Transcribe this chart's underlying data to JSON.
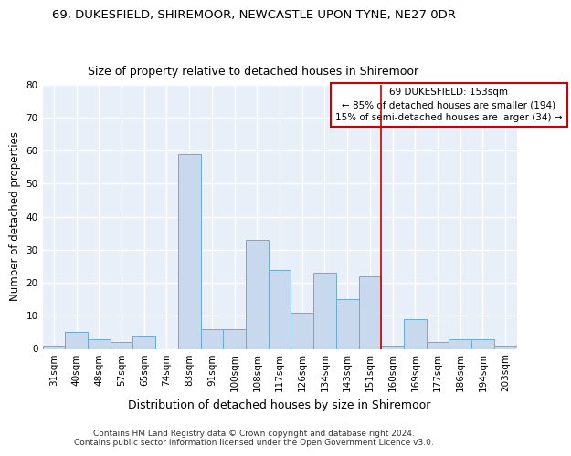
{
  "title1": "69, DUKESFIELD, SHIREMOOR, NEWCASTLE UPON TYNE, NE27 0DR",
  "title2": "Size of property relative to detached houses in Shiremoor",
  "xlabel": "Distribution of detached houses by size in Shiremoor",
  "ylabel": "Number of detached properties",
  "categories": [
    "31sqm",
    "40sqm",
    "48sqm",
    "57sqm",
    "65sqm",
    "74sqm",
    "83sqm",
    "91sqm",
    "100sqm",
    "108sqm",
    "117sqm",
    "126sqm",
    "134sqm",
    "143sqm",
    "151sqm",
    "160sqm",
    "169sqm",
    "177sqm",
    "186sqm",
    "194sqm",
    "203sqm"
  ],
  "values": [
    1,
    5,
    3,
    2,
    4,
    0,
    59,
    6,
    6,
    33,
    24,
    11,
    23,
    15,
    22,
    1,
    9,
    2,
    3,
    3,
    1
  ],
  "bar_color": "#c8d9ed",
  "bar_edge_color": "#6aabd6",
  "vline_x_index": 14,
  "vline_color": "#cc0000",
  "annotation_text": "69 DUKESFIELD: 153sqm\n← 85% of detached houses are smaller (194)\n15% of semi-detached houses are larger (34) →",
  "annotation_box_color": "#cc0000",
  "ylim": [
    0,
    80
  ],
  "yticks": [
    0,
    10,
    20,
    30,
    40,
    50,
    60,
    70,
    80
  ],
  "background_color": "#e8eff8",
  "grid_color": "#ffffff",
  "footer": "Contains HM Land Registry data © Crown copyright and database right 2024.\nContains public sector information licensed under the Open Government Licence v3.0.",
  "title1_fontsize": 9.5,
  "title2_fontsize": 9,
  "xlabel_fontsize": 9,
  "ylabel_fontsize": 8.5,
  "tick_fontsize": 7.5,
  "annotation_fontsize": 7.5,
  "footer_fontsize": 6.5
}
